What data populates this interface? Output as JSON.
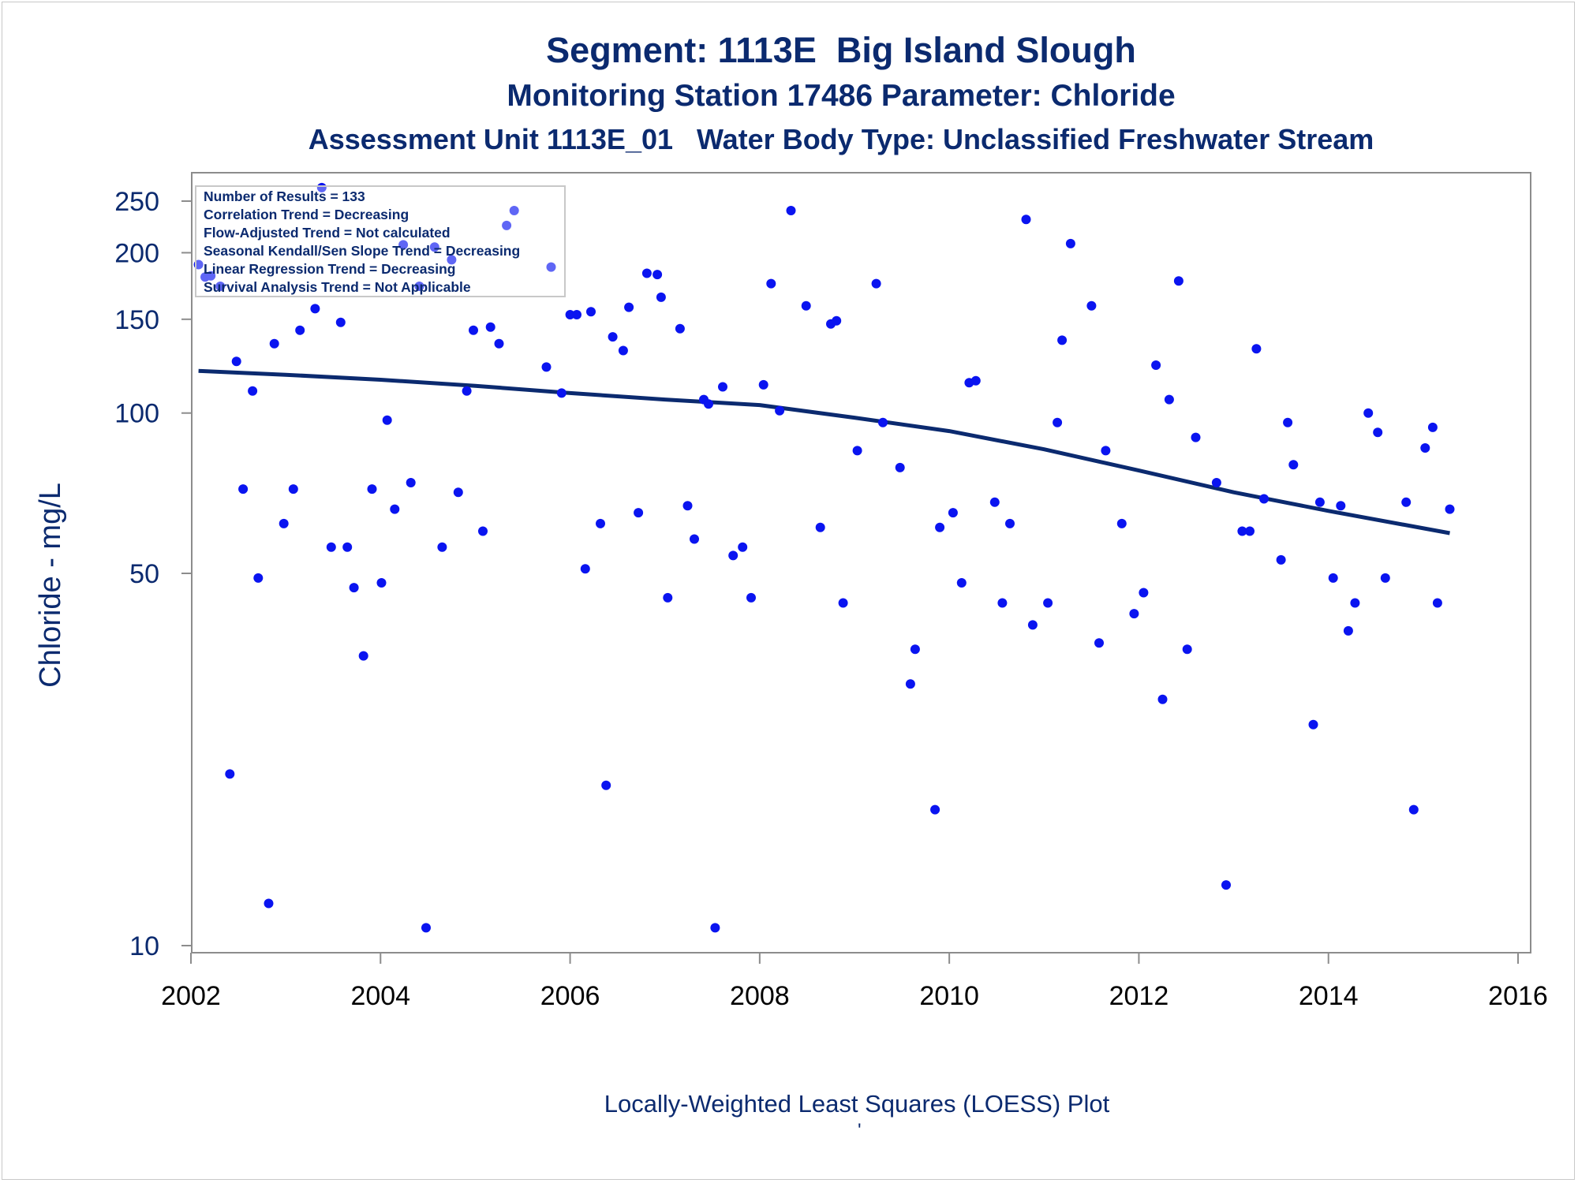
{
  "header": {
    "title": "Segment: 1113E  Big Island Slough",
    "subtitle": "Monitoring Station 17486 Parameter: Chloride",
    "subtitle2": "Assessment Unit 1113E_01   Water Body Type: Unclassified Freshwater Stream"
  },
  "footer": {
    "caption": "Locally-Weighted Least Squares (LOESS) Plot",
    "mark": "'"
  },
  "stats_box": {
    "lines": [
      "Number of Results = 133",
      "Correlation Trend = Decreasing",
      "Flow-Adjusted Trend = Not calculated",
      "Seasonal Kendall/Sen Slope Trend = Decreasing",
      "Linear Regression Trend = Decreasing",
      "Survival Analysis Trend = Not Applicable"
    ]
  },
  "colors": {
    "points": "#0a14f0",
    "loess_line": "#0b2a6f",
    "text": "#0b2a6f",
    "axis": "#8c8c8c"
  },
  "chart_data": {
    "type": "scatter",
    "ylabel": "Chloride - mg/L",
    "xlabel": "",
    "yscale": "log",
    "xlim": [
      2002,
      2016
    ],
    "ylim": [
      10,
      270
    ],
    "x_ticks": [
      2002,
      2004,
      2006,
      2008,
      2010,
      2012,
      2014,
      2016
    ],
    "y_ticks": [
      10,
      50,
      100,
      150,
      200,
      250
    ],
    "grid": false,
    "series": [
      {
        "kind": "points",
        "points": [
          [
            2002.08,
            190
          ],
          [
            2002.15,
            180
          ],
          [
            2002.21,
            181
          ],
          [
            2002.31,
            173
          ],
          [
            2002.41,
            21
          ],
          [
            2002.48,
            125
          ],
          [
            2002.55,
            72
          ],
          [
            2002.65,
            110
          ],
          [
            2002.71,
            49
          ],
          [
            2002.82,
            12
          ],
          [
            2002.88,
            135
          ],
          [
            2002.98,
            62
          ],
          [
            2003.08,
            72
          ],
          [
            2003.15,
            143
          ],
          [
            2003.31,
            157
          ],
          [
            2003.38,
            265
          ],
          [
            2003.48,
            56
          ],
          [
            2003.58,
            148
          ],
          [
            2003.65,
            56
          ],
          [
            2003.72,
            47
          ],
          [
            2003.82,
            35
          ],
          [
            2003.91,
            72
          ],
          [
            2004.01,
            48
          ],
          [
            2004.07,
            97
          ],
          [
            2004.15,
            66
          ],
          [
            2004.24,
            207
          ],
          [
            2004.32,
            74
          ],
          [
            2004.41,
            173
          ],
          [
            2004.48,
            10.8
          ],
          [
            2004.57,
            205
          ],
          [
            2004.65,
            56
          ],
          [
            2004.75,
            194
          ],
          [
            2004.82,
            71
          ],
          [
            2004.91,
            110
          ],
          [
            2004.98,
            143
          ],
          [
            2005.08,
            60
          ],
          [
            2005.16,
            145
          ],
          [
            2005.25,
            135
          ],
          [
            2005.33,
            225
          ],
          [
            2005.41,
            240
          ],
          [
            2005.75,
            122
          ],
          [
            2005.8,
            188
          ],
          [
            2005.91,
            109
          ],
          [
            2006.0,
            153
          ],
          [
            2006.07,
            153
          ],
          [
            2006.16,
            51
          ],
          [
            2006.22,
            155
          ],
          [
            2006.32,
            62
          ],
          [
            2006.38,
            20
          ],
          [
            2006.45,
            139
          ],
          [
            2006.56,
            131
          ],
          [
            2006.62,
            158
          ],
          [
            2006.72,
            65
          ],
          [
            2006.81,
            183
          ],
          [
            2006.92,
            182
          ],
          [
            2006.96,
            165
          ],
          [
            2007.03,
            45
          ],
          [
            2007.16,
            144
          ],
          [
            2007.24,
            67
          ],
          [
            2007.31,
            58
          ],
          [
            2007.41,
            106
          ],
          [
            2007.46,
            104
          ],
          [
            2007.53,
            10.8
          ],
          [
            2007.61,
            112
          ],
          [
            2007.72,
            54
          ],
          [
            2007.82,
            56
          ],
          [
            2007.91,
            45
          ],
          [
            2008.04,
            113
          ],
          [
            2008.12,
            175
          ],
          [
            2008.21,
            101
          ],
          [
            2008.33,
            240
          ],
          [
            2008.49,
            159
          ],
          [
            2008.64,
            61
          ],
          [
            2008.75,
            147
          ],
          [
            2008.81,
            149
          ],
          [
            2008.88,
            44
          ],
          [
            2009.03,
            85
          ],
          [
            2009.23,
            175
          ],
          [
            2009.3,
            96
          ],
          [
            2009.48,
            79
          ],
          [
            2009.59,
            31
          ],
          [
            2009.64,
            36
          ],
          [
            2009.85,
            18
          ],
          [
            2009.9,
            61
          ],
          [
            2010.04,
            65
          ],
          [
            2010.13,
            48
          ],
          [
            2010.21,
            114
          ],
          [
            2010.28,
            115
          ],
          [
            2010.48,
            68
          ],
          [
            2010.56,
            44
          ],
          [
            2010.64,
            62
          ],
          [
            2010.81,
            231
          ],
          [
            2010.88,
            40
          ],
          [
            2011.04,
            44
          ],
          [
            2011.14,
            96
          ],
          [
            2011.19,
            137
          ],
          [
            2011.28,
            208
          ],
          [
            2011.5,
            159
          ],
          [
            2011.58,
            37
          ],
          [
            2011.65,
            85
          ],
          [
            2011.82,
            62
          ],
          [
            2011.95,
            42
          ],
          [
            2012.05,
            46
          ],
          [
            2012.18,
            123
          ],
          [
            2012.25,
            29
          ],
          [
            2012.32,
            106
          ],
          [
            2012.42,
            177
          ],
          [
            2012.51,
            36
          ],
          [
            2012.6,
            90
          ],
          [
            2012.82,
            74
          ],
          [
            2012.92,
            13
          ],
          [
            2013.09,
            60
          ],
          [
            2013.17,
            60
          ],
          [
            2013.24,
            132
          ],
          [
            2013.32,
            69
          ],
          [
            2013.5,
            53
          ],
          [
            2013.57,
            96
          ],
          [
            2013.63,
            80
          ],
          [
            2013.84,
            26
          ],
          [
            2013.91,
            68
          ],
          [
            2014.05,
            49
          ],
          [
            2014.13,
            67
          ],
          [
            2014.21,
            39
          ],
          [
            2014.28,
            44
          ],
          [
            2014.42,
            100
          ],
          [
            2014.52,
            92
          ],
          [
            2014.6,
            49
          ],
          [
            2014.82,
            68
          ],
          [
            2014.9,
            18
          ],
          [
            2015.02,
            86
          ],
          [
            2015.1,
            94
          ],
          [
            2015.15,
            44
          ],
          [
            2015.28,
            66
          ]
        ]
      },
      {
        "kind": "loess",
        "points": [
          [
            2002.08,
            120
          ],
          [
            2003.0,
            118
          ],
          [
            2004.0,
            115.5
          ],
          [
            2005.0,
            112.5
          ],
          [
            2006.0,
            109
          ],
          [
            2007.0,
            106
          ],
          [
            2008.0,
            103.5
          ],
          [
            2009.0,
            98
          ],
          [
            2010.0,
            92.5
          ],
          [
            2011.0,
            85.5
          ],
          [
            2012.0,
            78
          ],
          [
            2013.0,
            71
          ],
          [
            2014.0,
            65.5
          ],
          [
            2015.28,
            59.5
          ]
        ]
      }
    ]
  }
}
